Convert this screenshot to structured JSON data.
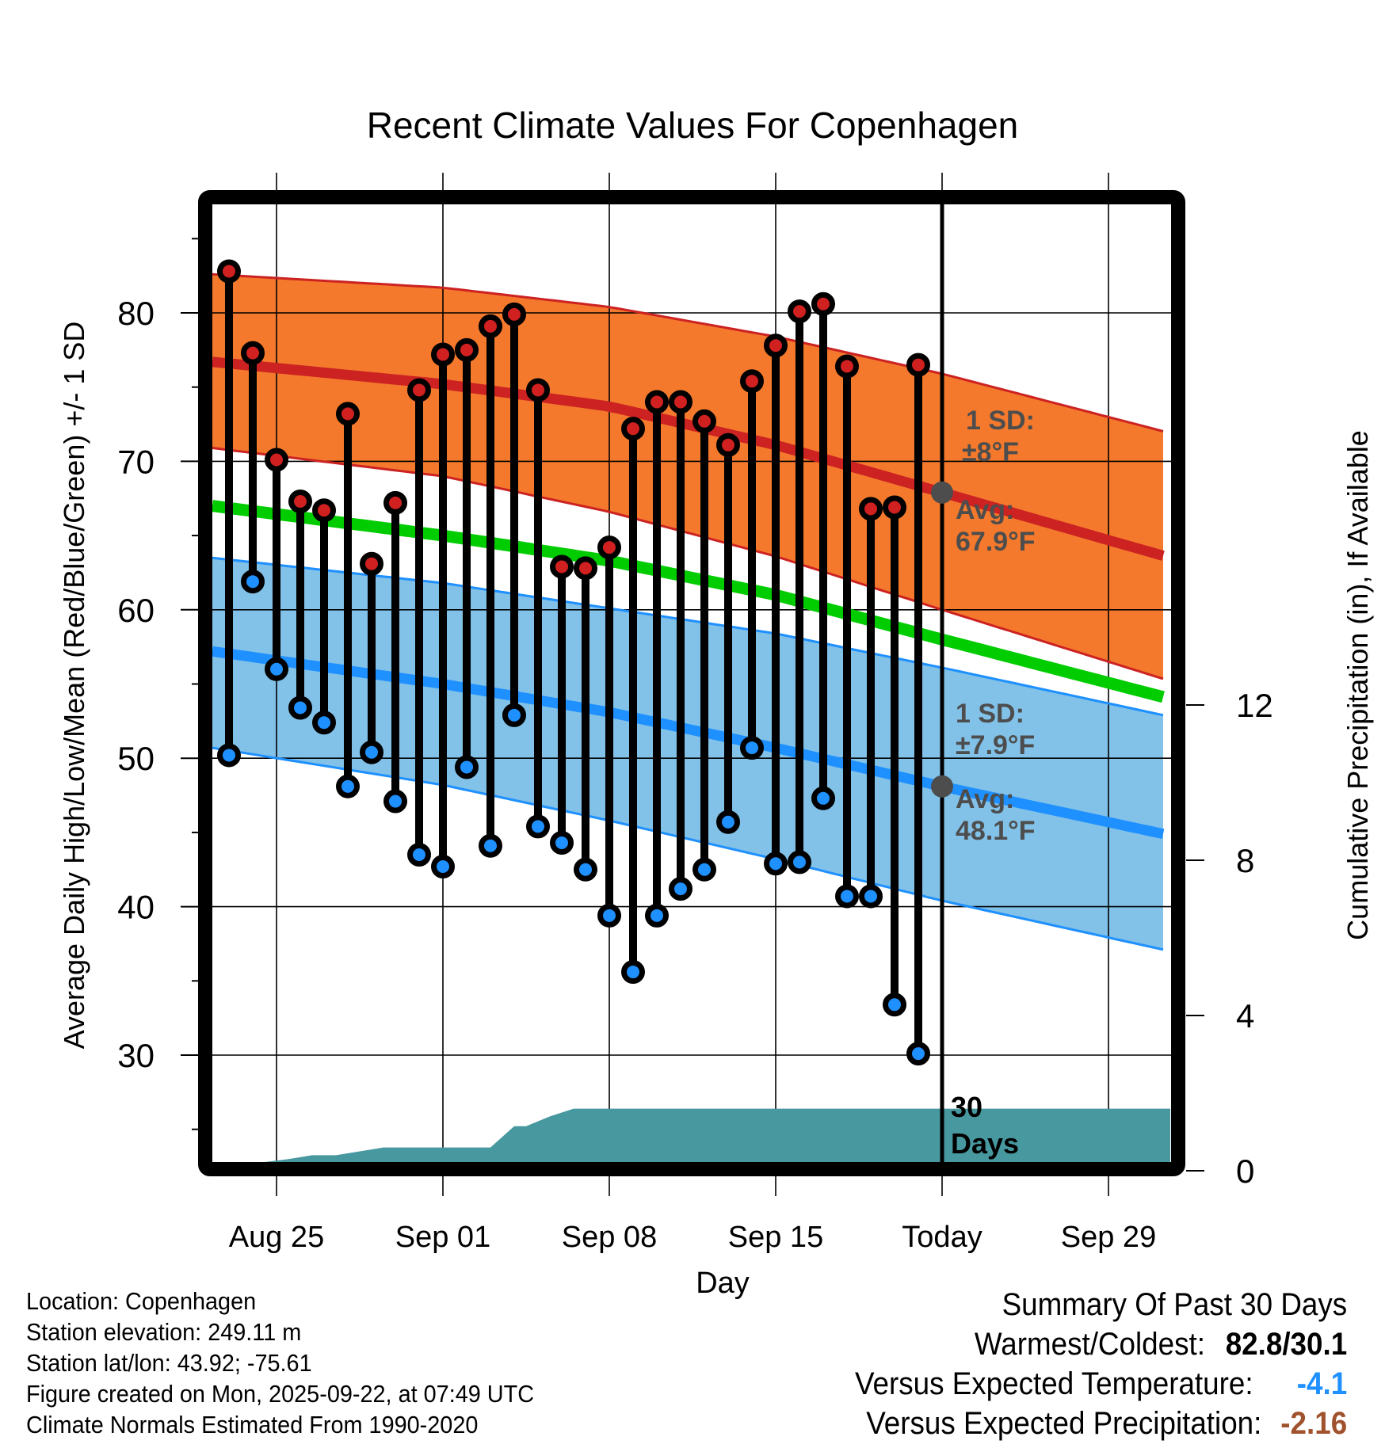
{
  "chart_data": {
    "type": "line",
    "title": "Recent Climate Values For Copenhagen",
    "xlabel": "Day",
    "ylabel": "Average Daily High/Low/Mean (Red/Blue/Green) +/- 1 SD",
    "y2label": "Cumulative Precipitation (in), If Available",
    "ylim": [
      22.5,
      87.5
    ],
    "y2lim": [
      0,
      16
    ],
    "yticks": [
      30,
      40,
      50,
      60,
      70,
      80
    ],
    "y2ticks": [
      0,
      4,
      8,
      12
    ],
    "grid": true,
    "xticks": [
      {
        "label": "Aug 25",
        "day": 2
      },
      {
        "label": "Sep 01",
        "day": 9
      },
      {
        "label": "Sep 08",
        "day": 16
      },
      {
        "label": "Sep 15",
        "day": 23
      },
      {
        "label": "Today",
        "day": 30
      },
      {
        "label": "Sep 29",
        "day": 37
      }
    ],
    "x_start_date": "Aug 23",
    "x_range_days": [
      -0.7,
      39.6
    ],
    "dates": [
      "Aug 23",
      "Aug 24",
      "Aug 25",
      "Aug 26",
      "Aug 27",
      "Aug 28",
      "Aug 29",
      "Aug 30",
      "Aug 31",
      "Sep 01",
      "Sep 02",
      "Sep 03",
      "Sep 04",
      "Sep 05",
      "Sep 06",
      "Sep 07",
      "Sep 08",
      "Sep 09",
      "Sep 10",
      "Sep 11",
      "Sep 12",
      "Sep 13",
      "Sep 14",
      "Sep 15",
      "Sep 16",
      "Sep 17",
      "Sep 18",
      "Sep 19",
      "Sep 20",
      "Sep 21"
    ],
    "series": [
      {
        "name": "Daily High",
        "color": "#d02020",
        "values": [
          82.8,
          77.3,
          70.1,
          67.3,
          66.7,
          73.2,
          63.1,
          67.2,
          74.8,
          77.2,
          77.5,
          79.1,
          79.9,
          74.8,
          62.9,
          62.8,
          64.2,
          72.2,
          74.0,
          74.0,
          72.7,
          71.1,
          75.4,
          77.8,
          80.1,
          80.6,
          76.4,
          66.8,
          66.9,
          76.5
        ]
      },
      {
        "name": "Daily Low",
        "color": "#1e90ff",
        "values": [
          50.2,
          61.9,
          56.0,
          53.4,
          52.4,
          48.1,
          50.4,
          47.1,
          43.5,
          42.7,
          49.4,
          44.1,
          52.9,
          45.4,
          44.3,
          42.5,
          39.4,
          35.6,
          39.4,
          41.2,
          42.5,
          45.7,
          50.7,
          42.9,
          43.0,
          47.3,
          40.7,
          40.7,
          33.4,
          30.1
        ]
      }
    ],
    "normals": {
      "days": [
        -0.7,
        9,
        16,
        23,
        30,
        39.6
      ],
      "high_upper": [
        82.6,
        81.7,
        80.4,
        78.4,
        75.9,
        71.9
      ],
      "high_avg": [
        76.7,
        75.2,
        73.7,
        71.1,
        67.9,
        63.5
      ],
      "high_lower": [
        70.9,
        69.0,
        66.6,
        63.6,
        60.0,
        55.2
      ],
      "mean": [
        67.0,
        65.0,
        63.3,
        61.0,
        58.0,
        54.0
      ],
      "low_upper": [
        63.5,
        61.8,
        60.1,
        58.4,
        56.1,
        52.8
      ],
      "low_avg": [
        57.2,
        55.0,
        53.1,
        50.7,
        48.1,
        44.8
      ],
      "low_lower": [
        50.7,
        48.2,
        45.8,
        43.2,
        40.4,
        37.0
      ]
    },
    "precipitation": {
      "name": "Cumulative Precipitation",
      "color": "#4898a0",
      "days": [
        -0.7,
        0.6,
        1.5,
        2.5,
        3.5,
        4.5,
        5.5,
        6.5,
        7.5,
        8.5,
        9.5,
        10.5,
        11.0,
        12.0,
        12.5,
        13.5,
        14.5,
        39.6
      ],
      "values": [
        0.0,
        0.0,
        0.15,
        0.3,
        0.4,
        0.4,
        0.5,
        0.6,
        0.6,
        0.6,
        0.6,
        0.6,
        0.6,
        1.15,
        1.15,
        1.4,
        1.6,
        1.6
      ]
    },
    "annotations": {
      "high_sd": "1 SD:",
      "high_sd_value": "±8°F",
      "high_avg": "Avg:",
      "high_avg_value": "67.9°F",
      "low_sd": "1 SD:",
      "low_sd_value": "±7.9°F",
      "low_avg": "Avg:",
      "low_avg_value": "48.1°F",
      "window_count": "30",
      "window_unit": "Days"
    },
    "colors": {
      "high_band": "#f4792c",
      "high_line": "#cc2222",
      "mean_line": "#00cc00",
      "low_band": "#82c1e8",
      "low_line": "#1e90ff",
      "marker_today": "#4d4d4d",
      "annotation_text": "#4d4d4d"
    }
  },
  "info": {
    "location": "Location: Copenhagen",
    "elevation": "Station elevation: 249.11 m",
    "latlon": "Station lat/lon: 43.92; -75.61",
    "created": "Figure created on Mon, 2025-09-22, at 07:49 UTC",
    "normals": "Climate Normals Estimated From 1990-2020"
  },
  "summary": {
    "title": "Summary Of Past 30 Days",
    "warmest_coldest_label": "Warmest/Coldest:",
    "warmest_coldest_value": "82.8/30.1",
    "temp_label": "Versus Expected Temperature:",
    "temp_value": "-4.1",
    "temp_color": "#1e90ff",
    "precip_label": "Versus Expected Precipitation:",
    "precip_value": "-2.16",
    "precip_color": "#a0522d"
  }
}
